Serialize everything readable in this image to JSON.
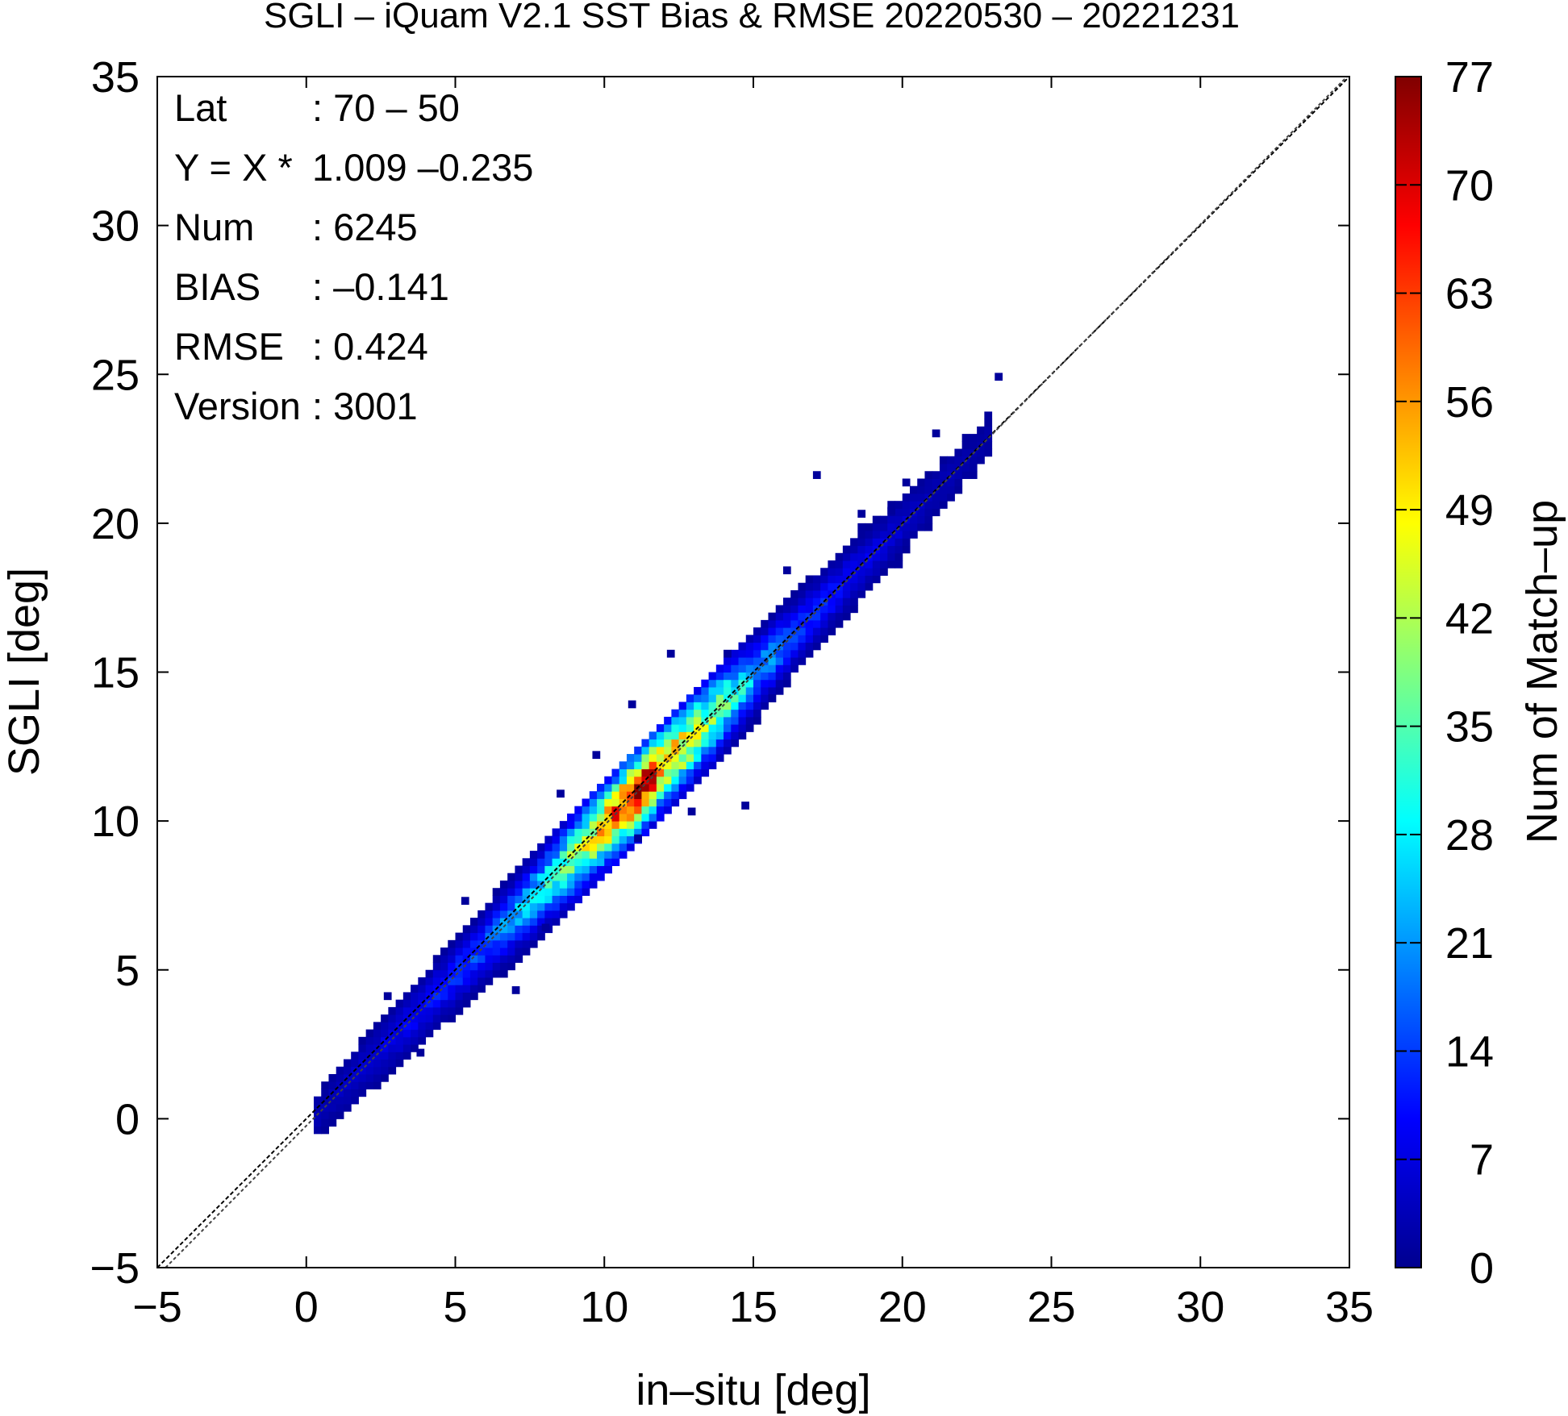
{
  "chart_data": {
    "type": "heatmap",
    "title": "SGLI – iQuam V2.1 SST Bias & RMSE 20220530 – 20221231",
    "xlabel": "in–situ [deg]",
    "ylabel": "SGLI [deg]",
    "xlim": [
      -5,
      35
    ],
    "ylim": [
      -5,
      35
    ],
    "x_ticks": [
      -5,
      0,
      5,
      10,
      15,
      20,
      25,
      30,
      35
    ],
    "y_ticks": [
      -5,
      0,
      5,
      10,
      15,
      20,
      25,
      30,
      35
    ],
    "x_tick_labels": [
      "−5",
      "0",
      "5",
      "10",
      "15",
      "20",
      "25",
      "30",
      "35"
    ],
    "y_tick_labels": [
      "−5",
      "0",
      "5",
      "10",
      "15",
      "20",
      "25",
      "30",
      "35"
    ],
    "bin_size": 0.25,
    "grid": false,
    "colorbar": {
      "label": "Num of Match–up",
      "min": 0,
      "max": 77,
      "ticks": [
        0,
        7,
        14,
        21,
        28,
        35,
        42,
        49,
        56,
        63,
        70,
        77
      ],
      "tick_labels": [
        "0",
        "7",
        "14",
        "21",
        "28",
        "35",
        "42",
        "49",
        "56",
        "63",
        "70",
        "77"
      ],
      "colormap": [
        "#00008f",
        "#0000ff",
        "#0080ff",
        "#00ffff",
        "#80ff80",
        "#ffff00",
        "#ff8000",
        "#ff0000",
        "#800000"
      ]
    },
    "reference_line": {
      "name": "1:1",
      "slope": 1.0,
      "intercept": 0.0,
      "style": "dashed"
    },
    "regression_line": {
      "slope": 1.009,
      "intercept": -0.235,
      "style": "dashed"
    },
    "stats": [
      {
        "label": "Lat",
        "value": ": 70 – 50"
      },
      {
        "label": "Y = X *",
        "value": "1.009 –0.235"
      },
      {
        "label": "Num",
        "value": ": 6245"
      },
      {
        "label": "BIAS",
        "value": ": –0.141"
      },
      {
        "label": "RMSE",
        "value": ": 0.424"
      },
      {
        "label": "Version",
        "value": ": 3001"
      }
    ],
    "density_profile": [
      {
        "x": 0.5,
        "peak": 3,
        "spread": 0.2
      },
      {
        "x": 2.0,
        "peak": 6,
        "spread": 0.3
      },
      {
        "x": 4.0,
        "peak": 10,
        "spread": 0.3
      },
      {
        "x": 6.0,
        "peak": 16,
        "spread": 0.3
      },
      {
        "x": 8.0,
        "peak": 30,
        "spread": 0.3
      },
      {
        "x": 9.5,
        "peak": 45,
        "spread": 0.3
      },
      {
        "x": 11.0,
        "peak": 72,
        "spread": 0.3
      },
      {
        "x": 12.0,
        "peak": 55,
        "spread": 0.3
      },
      {
        "x": 13.5,
        "peak": 40,
        "spread": 0.3
      },
      {
        "x": 15.0,
        "peak": 22,
        "spread": 0.3
      },
      {
        "x": 16.5,
        "peak": 14,
        "spread": 0.3
      },
      {
        "x": 18.5,
        "peak": 8,
        "spread": 0.3
      },
      {
        "x": 20.5,
        "peak": 4,
        "spread": 0.3
      },
      {
        "x": 22.5,
        "peak": 2,
        "spread": 0.3
      }
    ],
    "outliers": [
      {
        "x": 14.6,
        "y": 10.4,
        "count": 1
      },
      {
        "x": 23.1,
        "y": 24.8,
        "count": 1
      },
      {
        "x": 17.0,
        "y": 21.5,
        "count": 1
      },
      {
        "x": 6.9,
        "y": 4.2,
        "count": 1
      },
      {
        "x": 3.7,
        "y": 2.1,
        "count": 1
      },
      {
        "x": 12.1,
        "y": 15.5,
        "count": 1
      },
      {
        "x": 10.8,
        "y": 13.8,
        "count": 1
      },
      {
        "x": 8.4,
        "y": 10.8,
        "count": 1
      },
      {
        "x": 5.2,
        "y": 7.2,
        "count": 1
      },
      {
        "x": 2.6,
        "y": 4.0,
        "count": 1
      },
      {
        "x": 18.5,
        "y": 20.2,
        "count": 1
      },
      {
        "x": 21.0,
        "y": 22.9,
        "count": 1
      },
      {
        "x": 14.0,
        "y": 15.5,
        "count": 1
      },
      {
        "x": 16.0,
        "y": 18.3,
        "count": 1
      },
      {
        "x": 12.8,
        "y": 10.2,
        "count": 1
      },
      {
        "x": 7.9,
        "y": 6.3,
        "count": 1
      },
      {
        "x": 9.6,
        "y": 12.1,
        "count": 1
      },
      {
        "x": 19.5,
        "y": 20.3,
        "count": 1
      },
      {
        "x": 15.5,
        "y": 14.0,
        "count": 1
      },
      {
        "x": 11.0,
        "y": 9.3,
        "count": 1
      }
    ]
  }
}
